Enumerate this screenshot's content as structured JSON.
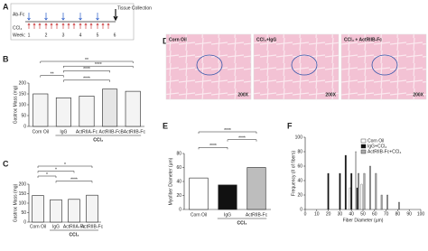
{
  "chart_data": [
    {
      "type": "timeline",
      "panel": "A",
      "antibody": "Ab-Fc",
      "ccl4": "CCl₄",
      "week_label": "Week:",
      "weeks": [
        1,
        2,
        3,
        4,
        5,
        6
      ],
      "end": "Tissue Collection"
    },
    {
      "type": "bar",
      "panel": "B",
      "ylabel": "Gastroc Mass (mg)",
      "categories": [
        "Corn Oil",
        "IgG",
        "ActRIIA-Fc",
        "ActRIIB-Fc",
        "BActRIIB-Fc"
      ],
      "values": [
        150,
        132,
        140,
        172,
        162
      ],
      "colors": [
        "#f4f4f4",
        "#f4f4f4",
        "#f4f4f4",
        "#e6e6e6",
        "#f4f4f4"
      ],
      "group_label": "CCl₄",
      "ylim": [
        0,
        200
      ],
      "yticks": [
        0,
        50,
        100,
        150,
        200
      ],
      "significance": [
        {
          "label": "**",
          "from": 0,
          "to": 4
        },
        {
          "label": "****",
          "from": 1,
          "to": 4
        },
        {
          "label": "****",
          "from": 1,
          "to": 3
        },
        {
          "label": "**",
          "from": 0,
          "to": 1
        },
        {
          "label": "****",
          "from": 1,
          "to": 3
        }
      ]
    },
    {
      "type": "bar",
      "panel": "C",
      "ylabel": "Gastroc Mass (mg)",
      "categories": [
        "Corn Oil",
        "IgG",
        "ActRIIA-Fc",
        "ActRIIB-Fc"
      ],
      "values": [
        140,
        118,
        120,
        142
      ],
      "colors": [
        "#f4f4f4",
        "#f4f4f4",
        "#f4f4f4",
        "#f4f4f4"
      ],
      "group_label": "CCl₄",
      "ylim": [
        0,
        200
      ],
      "yticks": [
        0,
        50,
        100,
        150,
        200
      ],
      "significance": [
        {
          "label": "*",
          "from": 0,
          "to": 3
        },
        {
          "label": "*",
          "from": 0,
          "to": 2
        },
        {
          "label": "*",
          "from": 0,
          "to": 1
        },
        {
          "label": "****",
          "from": 1,
          "to": 3
        }
      ]
    },
    {
      "type": "image",
      "panel": "D",
      "labels": [
        "Corn Oil",
        "CCl₄+IgG",
        "CCl₄ + ActRIIB-Fc"
      ],
      "magnification": "200X"
    },
    {
      "type": "bar",
      "panel": "E",
      "ylabel": "Myofiber Diameter (µm)",
      "categories": [
        "Corn Oil",
        "IgG",
        "ActRIIB-Fc"
      ],
      "values": [
        45,
        35,
        60
      ],
      "colors": [
        "#ffffff",
        "#111111",
        "#bdbdbd"
      ],
      "group_label": "CCl₄",
      "ylim": [
        0,
        80
      ],
      "yticks": [
        0,
        20,
        40,
        60,
        80
      ],
      "significance": [
        {
          "label": "****",
          "from": 0,
          "to": 2
        },
        {
          "label": "****",
          "from": 1,
          "to": 2
        },
        {
          "label": "****",
          "from": 0,
          "to": 1
        }
      ]
    },
    {
      "type": "histogram",
      "panel": "F",
      "xlabel": "Fiber Diameter (µm)",
      "ylabel": "Frequency (# of fibers)",
      "x": [
        20,
        30,
        35,
        40,
        45,
        50,
        55,
        60,
        65,
        70,
        80
      ],
      "series": [
        {
          "name": "Corn Oil",
          "color": "#ffffff",
          "values": [
            0,
            0,
            0,
            30,
            80,
            35,
            0,
            0,
            0,
            0,
            0
          ]
        },
        {
          "name": "IgG+CCl₄",
          "color": "#111111",
          "values": [
            50,
            50,
            75,
            50,
            30,
            0,
            0,
            0,
            0,
            0,
            0
          ]
        },
        {
          "name": "ActRIIB-Fc+CCl₄",
          "color": "#aaaaaa",
          "values": [
            0,
            0,
            0,
            0,
            50,
            50,
            60,
            50,
            20,
            20,
            10
          ]
        }
      ],
      "xlim": [
        0,
        100
      ],
      "xticks": [
        0,
        10,
        20,
        30,
        40,
        50,
        60,
        70,
        80,
        90,
        100
      ],
      "ylim": [
        0,
        100
      ],
      "yticks": [
        0,
        20,
        40,
        60,
        80,
        100
      ]
    }
  ]
}
